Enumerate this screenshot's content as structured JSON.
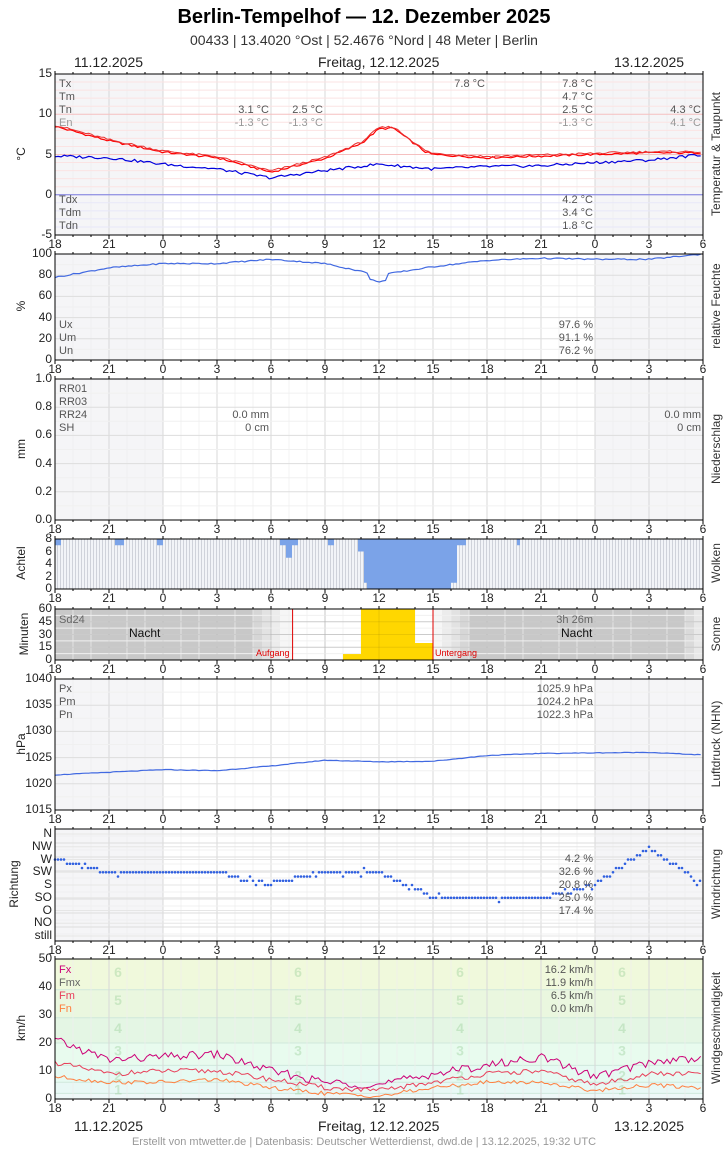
{
  "header": {
    "title": "Berlin-Tempelhof  —  12. Dezember 2025",
    "subtitle": "00433  |  13.4020 °Ost  |  52.4676 °Nord  |  48 Meter  |  Berlin",
    "date_left": "11.12.2025",
    "date_center": "Freitag, 12.12.2025",
    "date_right": "13.12.2025"
  },
  "footer": "Erstellt von mtwetter.de | Datenbasis: Deutscher Wetterdienst, dwd.de | 13.12.2025, 19:32 UTC",
  "x_ticks": [
    "18",
    "21",
    "0",
    "3",
    "6",
    "9",
    "12",
    "15",
    "18",
    "21",
    "0",
    "3",
    "6"
  ],
  "panels": {
    "temperature": {
      "side_title": "Temperatur & Taupunkt",
      "y_title": "°C",
      "y_ticks": [
        "15",
        "10",
        "5",
        "0",
        "-5"
      ],
      "legend_top": [
        "Tx",
        "Tm",
        "Tn",
        "En"
      ],
      "legend_bottom": [
        "Tdx",
        "Tdm",
        "Tdn"
      ],
      "day1_vals": [
        "3.1 °C",
        "-1.3 °C"
      ],
      "day1b_vals": [
        "2.5 °C",
        "-1.3 °C"
      ],
      "day2_tx_peak": "7.8 °C",
      "day2_vals": [
        "7.8 °C",
        "4.7 °C",
        "2.5 °C",
        "-1.3 °C"
      ],
      "day2_dew": [
        "4.2 °C",
        "3.4 °C",
        "1.8 °C"
      ],
      "day3_vals": [
        "4.3 °C",
        "4.1 °C"
      ]
    },
    "humidity": {
      "side_title": "relative Feuchte",
      "y_title": "%",
      "y_ticks": [
        "100",
        "80",
        "60",
        "40",
        "20",
        "0"
      ],
      "legend": [
        "Ux",
        "Um",
        "Un"
      ],
      "vals": [
        "97.6 %",
        "91.1 %",
        "76.2 %"
      ]
    },
    "precip": {
      "side_title": "Niederschlag",
      "y_title": "mm",
      "y_ticks": [
        "1.0",
        "0.8",
        "0.6",
        "0.4",
        "0.2",
        "0.0"
      ],
      "legend": [
        "RR01",
        "RR03",
        "RR24",
        "SH"
      ],
      "day1_vals": [
        "0.0 mm",
        "0 cm"
      ],
      "day2_vals": [
        "0.0 mm",
        "0 cm"
      ]
    },
    "clouds": {
      "side_title": "Wolken",
      "y_title": "Achtel",
      "y_ticks": [
        "8",
        "6",
        "4",
        "2",
        "0"
      ]
    },
    "sun": {
      "side_title": "Sonne",
      "y_title": "Minuten",
      "y_ticks": [
        "60",
        "45",
        "30",
        "15",
        "0"
      ],
      "legend": "Sd24",
      "total": "3h 26m",
      "night_label": "Nacht",
      "sunrise_label": "Aufgang",
      "sunset_label": "Untergang"
    },
    "pressure": {
      "side_title": "Luftdruck (NHN)",
      "y_title": "hPa",
      "y_ticks": [
        "1040",
        "1035",
        "1030",
        "1025",
        "1020",
        "1015"
      ],
      "legend": [
        "Px",
        "Pm",
        "Pn"
      ],
      "vals": [
        "1025.9 hPa",
        "1024.2 hPa",
        "1022.3 hPa"
      ]
    },
    "winddir": {
      "side_title": "Windrichtung",
      "y_title": "Richtung",
      "y_ticks": [
        "N",
        "NW",
        "W",
        "SW",
        "S",
        "SO",
        "O",
        "NO",
        "still"
      ],
      "vals": [
        "4.2 %",
        "32.6 %",
        "20.8 %",
        "25.0 %",
        "17.4 %"
      ]
    },
    "windspeed": {
      "side_title": "Windgeschwindigkeit",
      "y_title": "km/h",
      "y_ticks": [
        "50",
        "40",
        "30",
        "20",
        "10",
        "0"
      ],
      "legend": [
        "Fx",
        "Fmx",
        "Fm",
        "Fn"
      ],
      "vals": [
        "16.2 km/h",
        "11.9 km/h",
        "6.5 km/h",
        "0.0 km/h"
      ],
      "beaufort": [
        "6",
        "5",
        "4",
        "3",
        "2",
        "1"
      ]
    }
  },
  "colors": {
    "temp": "#ff0000",
    "dew": "#0000dd",
    "humidity": "#4169e1",
    "cloud": "#7ba3e8",
    "sun": "#ffd700",
    "sunline": "#e00000",
    "pressure": "#4169e1",
    "winddir": "#3060e0",
    "fx": "#cc0077",
    "fm": "#e8405a",
    "fn": "#ff7f3f"
  },
  "chart_data": [
    {
      "type": "line",
      "title": "Temperatur & Taupunkt",
      "ylabel": "°C",
      "ylim": [
        -5,
        15
      ],
      "x": [
        "18",
        "21",
        "0",
        "3",
        "6",
        "9",
        "12",
        "15",
        "18",
        "21",
        "0",
        "3",
        "6"
      ],
      "series": [
        {
          "name": "Temperatur",
          "values": [
            8.5,
            6.7,
            5.3,
            4.6,
            2.8,
            4.5,
            7.3,
            5.0,
            4.6,
            4.8,
            5.0,
            5.2,
            5.2
          ]
        },
        {
          "name": "Taupunkt",
          "values": [
            4.8,
            4.6,
            3.8,
            3.2,
            2.1,
            3.0,
            3.8,
            3.2,
            3.5,
            3.6,
            4.0,
            4.3,
            5.0
          ]
        }
      ]
    },
    {
      "type": "line",
      "title": "relative Feuchte",
      "ylabel": "%",
      "ylim": [
        0,
        100
      ],
      "x": [
        "18",
        "21",
        "0",
        "3",
        "6",
        "9",
        "12",
        "15",
        "18",
        "21",
        "0",
        "3",
        "6"
      ],
      "series": [
        {
          "name": "Feuchte",
          "values": [
            78,
            87,
            91,
            91,
            95,
            91,
            80,
            88,
            94,
            96,
            95,
            95,
            100
          ]
        }
      ]
    },
    {
      "type": "bar",
      "title": "Niederschlag",
      "ylabel": "mm",
      "ylim": [
        0,
        1.0
      ],
      "x": [
        "18",
        "21",
        "0",
        "3",
        "6",
        "9",
        "12",
        "15",
        "18",
        "21",
        "0",
        "3",
        "6"
      ],
      "series": [
        {
          "name": "RR",
          "values": [
            0,
            0,
            0,
            0,
            0,
            0,
            0,
            0,
            0,
            0,
            0,
            0,
            0
          ]
        }
      ]
    },
    {
      "type": "bar",
      "title": "Wolken",
      "ylabel": "Achtel",
      "ylim": [
        0,
        8
      ],
      "x": [
        "18",
        "21",
        "0",
        "3",
        "6",
        "9",
        "12",
        "15",
        "18",
        "21",
        "0",
        "3",
        "6"
      ],
      "series": [
        {
          "name": "Bedeckung (klar-Anteil blau)",
          "values": [
            8,
            8,
            8,
            8,
            8,
            8,
            8,
            8,
            8,
            8,
            8,
            8,
            8
          ]
        }
      ]
    },
    {
      "type": "bar",
      "title": "Sonne",
      "ylabel": "Minuten",
      "ylim": [
        0,
        60
      ],
      "categories": [
        "10",
        "11",
        "12",
        "13",
        "14"
      ],
      "values": [
        7,
        60,
        60,
        60,
        20
      ],
      "annotations": [
        "Aufgang ~7:10",
        "Untergang 15:00",
        "Sd24 3h 26m"
      ]
    },
    {
      "type": "line",
      "title": "Luftdruck (NHN)",
      "ylabel": "hPa",
      "ylim": [
        1015,
        1040
      ],
      "x": [
        "18",
        "21",
        "0",
        "3",
        "6",
        "9",
        "12",
        "15",
        "18",
        "21",
        "0",
        "3",
        "6"
      ],
      "series": [
        {
          "name": "Luftdruck",
          "values": [
            1021.7,
            1022.2,
            1022.7,
            1022.5,
            1023.4,
            1024.5,
            1024.2,
            1024.3,
            1025.4,
            1025.8,
            1025.9,
            1026.0,
            1025.5
          ]
        }
      ]
    },
    {
      "type": "scatter",
      "title": "Windrichtung",
      "ylabel": "Richtung",
      "ycategories": [
        "still",
        "NO",
        "O",
        "SO",
        "S",
        "SW",
        "W",
        "NW",
        "N"
      ],
      "x": [
        "18",
        "21",
        "0",
        "3",
        "6",
        "9",
        "12",
        "15",
        "18",
        "21",
        "0",
        "3",
        "6"
      ],
      "series": [
        {
          "name": "Richtung",
          "values": [
            "W",
            "SW",
            "SW",
            "SW",
            "S",
            "SW",
            "SW",
            "SO",
            "SO",
            "SO",
            "S",
            "NW",
            "S"
          ]
        }
      ]
    },
    {
      "type": "line",
      "title": "Windgeschwindigkeit",
      "ylabel": "km/h",
      "ylim": [
        0,
        50
      ],
      "x": [
        "18",
        "21",
        "0",
        "3",
        "6",
        "9",
        "12",
        "15",
        "18",
        "21",
        "0",
        "3",
        "6"
      ],
      "series": [
        {
          "name": "Fx",
          "values": [
            21,
            14,
            15,
            16,
            10,
            6,
            5,
            9,
            12,
            15,
            8,
            13,
            15
          ]
        },
        {
          "name": "Fm",
          "values": [
            13,
            9,
            10,
            10,
            7,
            4,
            3,
            6,
            9,
            10,
            5,
            9,
            9
          ]
        },
        {
          "name": "Fn",
          "values": [
            8,
            6,
            6,
            7,
            4,
            2,
            1,
            4,
            6,
            6,
            3,
            5,
            4
          ]
        }
      ]
    }
  ]
}
